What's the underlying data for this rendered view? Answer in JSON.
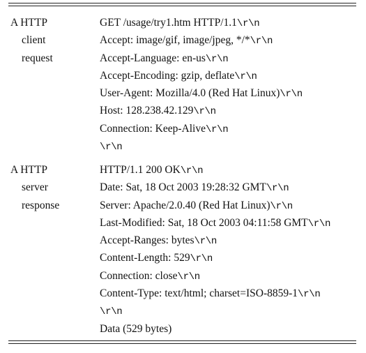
{
  "request": {
    "label_lines": [
      "A HTTP",
      "client",
      "request"
    ],
    "lines": [
      [
        "GET /usage/try1.htm HTTP/1.1",
        "\\r\\n"
      ],
      [
        "Accept: image/gif, image/jpeg, */*",
        "\\r\\n"
      ],
      [
        "Accept-Language: en-us",
        "\\r\\n"
      ],
      [
        "Accept-Encoding: gzip, deflate",
        "\\r\\n"
      ],
      [
        "User-Agent: Mozilla/4.0 (Red Hat Linux)",
        "\\r\\n"
      ],
      [
        "Host: 128.238.42.129",
        "\\r\\n"
      ],
      [
        "Connection: Keep-Alive",
        "\\r\\n"
      ],
      [
        "",
        "\\r\\n"
      ]
    ]
  },
  "response": {
    "label_lines": [
      "A HTTP",
      "server",
      "response"
    ],
    "lines": [
      [
        "HTTP/1.1 200 OK",
        "\\r\\n"
      ],
      [
        "Date: Sat, 18 Oct 2003 19:28:32 GMT",
        "\\r\\n"
      ],
      [
        "Server: Apache/2.0.40 (Red Hat Linux)",
        "\\r\\n"
      ],
      [
        "Last-Modified: Sat, 18 Oct 2003 04:11:58 GMT",
        "\\r\\n"
      ],
      [
        "Accept-Ranges: bytes",
        "\\r\\n"
      ],
      [
        "Content-Length: 529",
        "\\r\\n"
      ],
      [
        "Connection: close",
        "\\r\\n"
      ],
      [
        "Content-Type: text/html; charset=ISO-8859-1",
        "\\r\\n"
      ],
      [
        "",
        "\\r\\n"
      ],
      [
        "Data (529 bytes)",
        ""
      ]
    ]
  }
}
